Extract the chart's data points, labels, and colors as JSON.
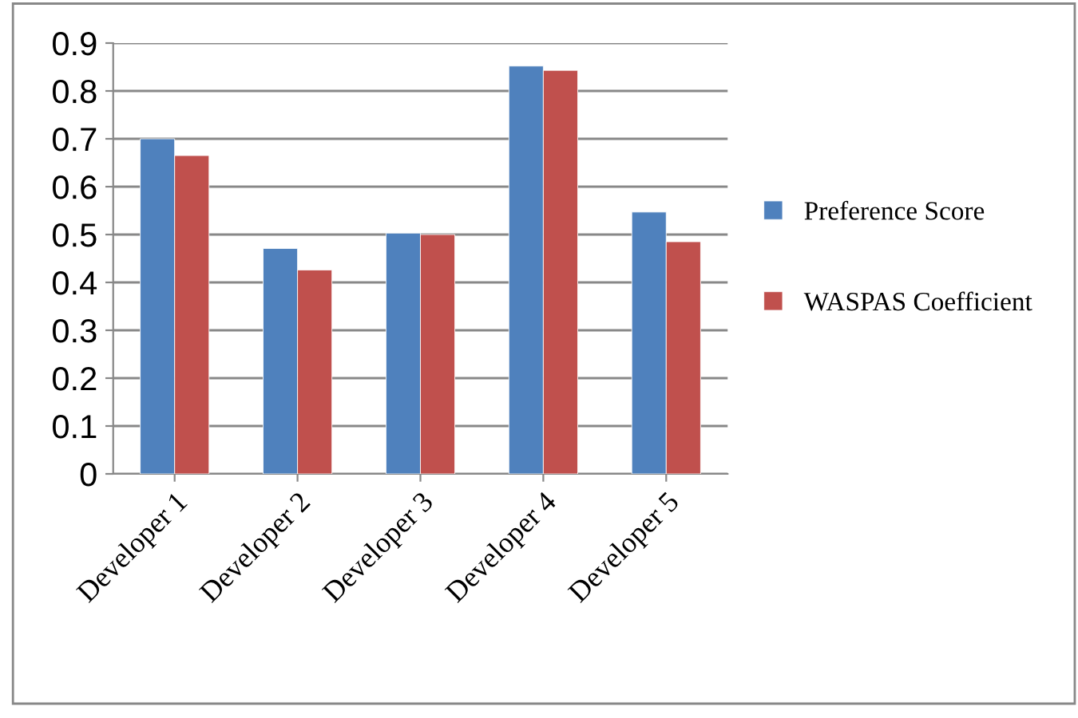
{
  "chart_data": {
    "type": "bar",
    "categories": [
      "Developer 1",
      "Developer 2",
      "Developer 3",
      "Developer 4",
      "Developer 5"
    ],
    "series": [
      {
        "name": "Preference Score",
        "color": "#4f81bd",
        "values": [
          0.7,
          0.471,
          0.503,
          0.852,
          0.547
        ]
      },
      {
        "name": "WASPAS Coefficient",
        "color": "#c0504d",
        "values": [
          0.665,
          0.426,
          0.5,
          0.843,
          0.485
        ]
      }
    ],
    "ylim": [
      0,
      0.9
    ],
    "yticks": [
      {
        "value": 0,
        "label": "0"
      },
      0.1,
      0.2,
      0.3,
      0.4,
      0.5,
      0.6,
      0.7,
      0.8,
      0.9
    ],
    "grid": "y",
    "legend": "right"
  }
}
